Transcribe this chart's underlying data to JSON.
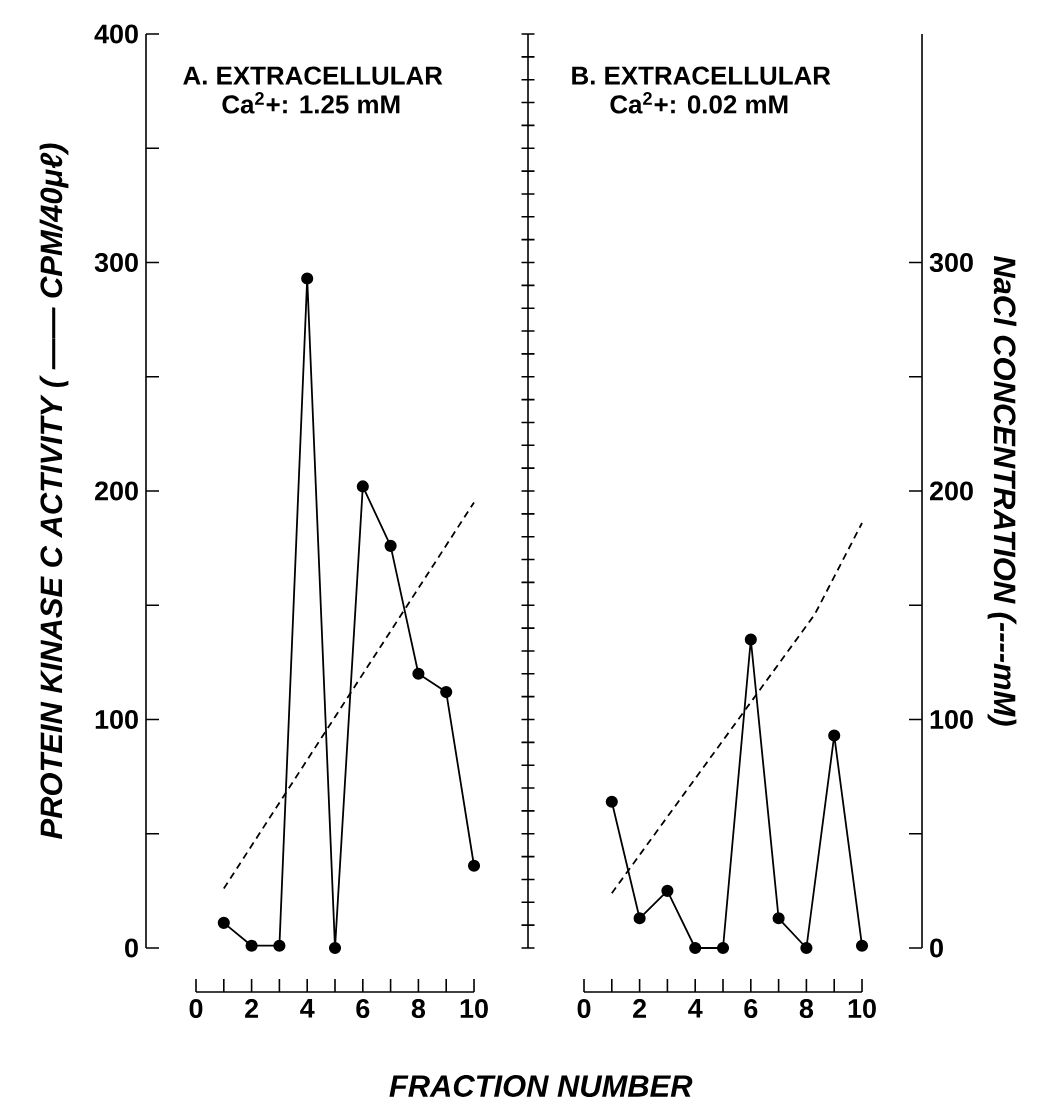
{
  "chart_data": [
    {
      "type": "line",
      "title": "A. EXTRACELLULAR",
      "subtitle": "Ca$^{2}$+: 1.25 mM",
      "ylabel": "PROTEIN KINASE C ACTIVITY ( —— CPM/40μℓ)",
      "xlabel": "FRACTION NUMBER",
      "xlim": [
        0,
        10
      ],
      "xticks": [
        0,
        2,
        4,
        6,
        8,
        10
      ],
      "ylim": [
        0,
        400
      ],
      "yticks": [
        0,
        100,
        200,
        300,
        400
      ],
      "series": [
        {
          "color": "#000000",
          "marker": "circle",
          "line_style": "solid",
          "x": [
            1,
            2,
            3,
            4,
            5,
            6,
            7,
            8,
            9,
            10
          ],
          "values": [
            11,
            1,
            1,
            293,
            0,
            202,
            176,
            120,
            112,
            36
          ]
        },
        {
          "color": "#000000",
          "marker": "none",
          "line_style": "dashed",
          "x": [
            1,
            10
          ],
          "values": [
            26,
            195
          ]
        }
      ]
    },
    {
      "type": "line",
      "title": "B. EXTRACELLULAR",
      "subtitle": "Ca$^{2}$+: 0.02 mM",
      "y2label": "NaCl CONCENTRATION (----mM)",
      "xlim": [
        0,
        10
      ],
      "xticks": [
        0,
        2,
        4,
        6,
        8,
        10
      ],
      "ylim": [
        0,
        400
      ],
      "y2lim": [
        0,
        400
      ],
      "y2ticks": [
        0,
        100,
        200,
        300
      ],
      "series": [
        {
          "color": "#000000",
          "marker": "circle",
          "line_style": "solid",
          "x": [
            1,
            2,
            3,
            4,
            5,
            6,
            7,
            8,
            9,
            10
          ],
          "values": [
            64,
            13,
            25,
            0,
            0,
            135,
            13,
            0,
            93,
            1
          ]
        },
        {
          "color": "#000000",
          "marker": "none",
          "line_style": "dashed",
          "axis": "y2",
          "x": [
            1,
            8.3,
            10
          ],
          "values": [
            24,
            146,
            186
          ]
        }
      ]
    }
  ]
}
